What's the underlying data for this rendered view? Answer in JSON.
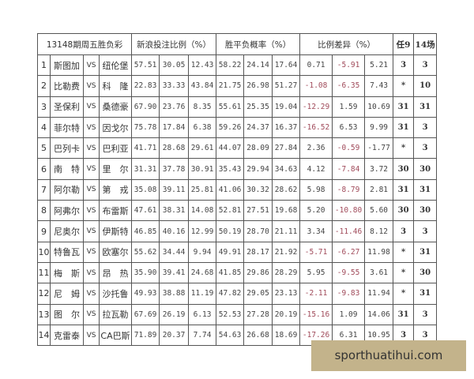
{
  "header": {
    "period": "13148期周五胜负彩",
    "sina_ratio": "新浪投注比例（%）",
    "probability": "胜平负概率（%）",
    "difference": "比例差异（%）",
    "ren9": "任9",
    "chang14": "14场"
  },
  "colors": {
    "negative": "#a04a5a",
    "watermark_bg": "#c3b38b"
  },
  "rows": [
    {
      "no": "1",
      "home": "斯图加",
      "vs": "VS",
      "away": "纽伦堡",
      "sina": [
        "57.51",
        "30.05",
        "12.43"
      ],
      "prob": [
        "58.22",
        "24.14",
        "17.64"
      ],
      "diff": [
        "0.71",
        "-5.91",
        "5.21"
      ],
      "ren9": "3",
      "chang14": "3"
    },
    {
      "no": "2",
      "home": "比勒费",
      "vs": "VS",
      "away": "科　隆",
      "sina": [
        "22.83",
        "33.33",
        "43.84"
      ],
      "prob": [
        "21.75",
        "26.98",
        "51.27"
      ],
      "diff": [
        "-1.08",
        "-6.35",
        "7.43"
      ],
      "ren9": "*",
      "chang14": "10"
    },
    {
      "no": "3",
      "home": "圣保利",
      "vs": "VS",
      "away": "桑德豪",
      "sina": [
        "67.90",
        "23.76",
        "8.35"
      ],
      "prob": [
        "55.61",
        "25.35",
        "19.04"
      ],
      "diff": [
        "-12.29",
        "1.59",
        "10.69"
      ],
      "ren9": "31",
      "chang14": "31"
    },
    {
      "no": "4",
      "home": "菲尔特",
      "vs": "VS",
      "away": "因戈尔",
      "sina": [
        "75.78",
        "17.84",
        "6.38"
      ],
      "prob": [
        "59.26",
        "24.37",
        "16.37"
      ],
      "diff": [
        "-16.52",
        "6.53",
        "9.99"
      ],
      "ren9": "31",
      "chang14": "3"
    },
    {
      "no": "5",
      "home": "巴列卡",
      "vs": "VS",
      "away": "巴利亚",
      "sina": [
        "41.71",
        "28.68",
        "29.61"
      ],
      "prob": [
        "44.07",
        "28.09",
        "27.84"
      ],
      "diff": [
        "2.36",
        "-0.59",
        "-1.77"
      ],
      "ren9": "*",
      "chang14": "3"
    },
    {
      "no": "6",
      "home": "南　特",
      "vs": "VS",
      "away": "里　尔",
      "sina": [
        "31.31",
        "37.78",
        "30.91"
      ],
      "prob": [
        "35.43",
        "29.94",
        "34.63"
      ],
      "diff": [
        "4.12",
        "-7.84",
        "3.72"
      ],
      "ren9": "30",
      "chang14": "30"
    },
    {
      "no": "7",
      "home": "阿尔勒",
      "vs": "VS",
      "away": "第　戎",
      "sina": [
        "35.08",
        "39.11",
        "25.81"
      ],
      "prob": [
        "41.06",
        "30.32",
        "28.62"
      ],
      "diff": [
        "5.98",
        "-8.79",
        "2.81"
      ],
      "ren9": "31",
      "chang14": "31"
    },
    {
      "no": "8",
      "home": "阿弗尔",
      "vs": "VS",
      "away": "布雷斯",
      "sina": [
        "47.61",
        "38.31",
        "14.08"
      ],
      "prob": [
        "52.81",
        "27.51",
        "19.68"
      ],
      "diff": [
        "5.20",
        "-10.80",
        "5.60"
      ],
      "ren9": "30",
      "chang14": "30"
    },
    {
      "no": "9",
      "home": "尼奥尔",
      "vs": "VS",
      "away": "伊斯特",
      "sina": [
        "46.85",
        "40.16",
        "12.99"
      ],
      "prob": [
        "50.19",
        "28.70",
        "21.11"
      ],
      "diff": [
        "3.34",
        "-11.46",
        "8.12"
      ],
      "ren9": "3",
      "chang14": "3"
    },
    {
      "no": "10",
      "home": "特鲁瓦",
      "vs": "VS",
      "away": "欧塞尔",
      "sina": [
        "55.62",
        "34.44",
        "9.94"
      ],
      "prob": [
        "49.91",
        "28.17",
        "21.92"
      ],
      "diff": [
        "-5.71",
        "-6.27",
        "11.98"
      ],
      "ren9": "*",
      "chang14": "31"
    },
    {
      "no": "11",
      "home": "梅　斯",
      "vs": "VS",
      "away": "昂　热",
      "sina": [
        "35.90",
        "39.41",
        "24.68"
      ],
      "prob": [
        "41.85",
        "29.86",
        "28.29"
      ],
      "diff": [
        "5.95",
        "-9.55",
        "3.61"
      ],
      "ren9": "*",
      "chang14": "30"
    },
    {
      "no": "12",
      "home": "尼　姆",
      "vs": "VS",
      "away": "沙托鲁",
      "sina": [
        "49.93",
        "38.88",
        "11.19"
      ],
      "prob": [
        "47.82",
        "29.05",
        "23.13"
      ],
      "diff": [
        "-2.11",
        "-9.83",
        "11.94"
      ],
      "ren9": "*",
      "chang14": "31"
    },
    {
      "no": "13",
      "home": "图　尔",
      "vs": "VS",
      "away": "拉瓦勒",
      "sina": [
        "67.69",
        "26.19",
        "6.13"
      ],
      "prob": [
        "52.53",
        "27.28",
        "20.19"
      ],
      "diff": [
        "-15.16",
        "1.09",
        "14.06"
      ],
      "ren9": "31",
      "chang14": "3"
    },
    {
      "no": "14",
      "home": "克雷泰",
      "vs": "VS",
      "away": "CA巴斯",
      "sina": [
        "71.89",
        "20.37",
        "7.74"
      ],
      "prob": [
        "54.63",
        "26.68",
        "18.69"
      ],
      "diff": [
        "-17.26",
        "6.31",
        "10.95"
      ],
      "ren9": "3",
      "chang14": "3"
    }
  ],
  "watermark": "sporthuatihui.com"
}
